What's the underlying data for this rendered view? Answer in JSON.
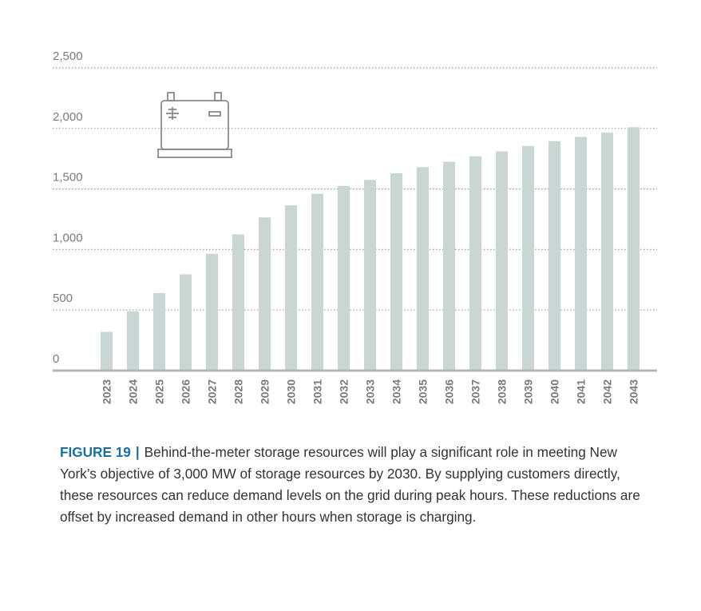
{
  "colors": {
    "bar": "#c9d6d3",
    "grid": "#9a9a9a",
    "axis": "#b5b5b5",
    "accent": "#1d6f9a",
    "icon": "#8a8a8a"
  },
  "icon": "battery-icon",
  "chart_data": {
    "type": "bar",
    "categories": [
      "2023",
      "2024",
      "2025",
      "2026",
      "2027",
      "2028",
      "2029",
      "2030",
      "2031",
      "2032",
      "2033",
      "2034",
      "2035",
      "2036",
      "2037",
      "2038",
      "2039",
      "2040",
      "2041",
      "2042",
      "2043"
    ],
    "values": [
      320,
      490,
      640,
      795,
      965,
      1125,
      1265,
      1365,
      1460,
      1525,
      1575,
      1630,
      1680,
      1725,
      1770,
      1810,
      1855,
      1895,
      1930,
      1965,
      2010
    ],
    "yticks": [
      0,
      500,
      1000,
      1500,
      2000,
      2500
    ],
    "ytick_labels": [
      "0",
      "500",
      "1,000",
      "1,500",
      "2,000",
      "2,500"
    ],
    "ylim": [
      0,
      2500
    ],
    "grid": true,
    "title": "",
    "xlabel": "",
    "ylabel": ""
  },
  "caption": {
    "label": "FIGURE 19",
    "separator": "|",
    "text": "Behind-the-meter storage resources will play a significant role in meeting New York’s objective of 3,000 MW of storage resources by 2030. By supplying customers directly, these resources can reduce demand levels on the grid during peak hours. These reductions are offset by increased demand in other hours when storage is charging."
  }
}
